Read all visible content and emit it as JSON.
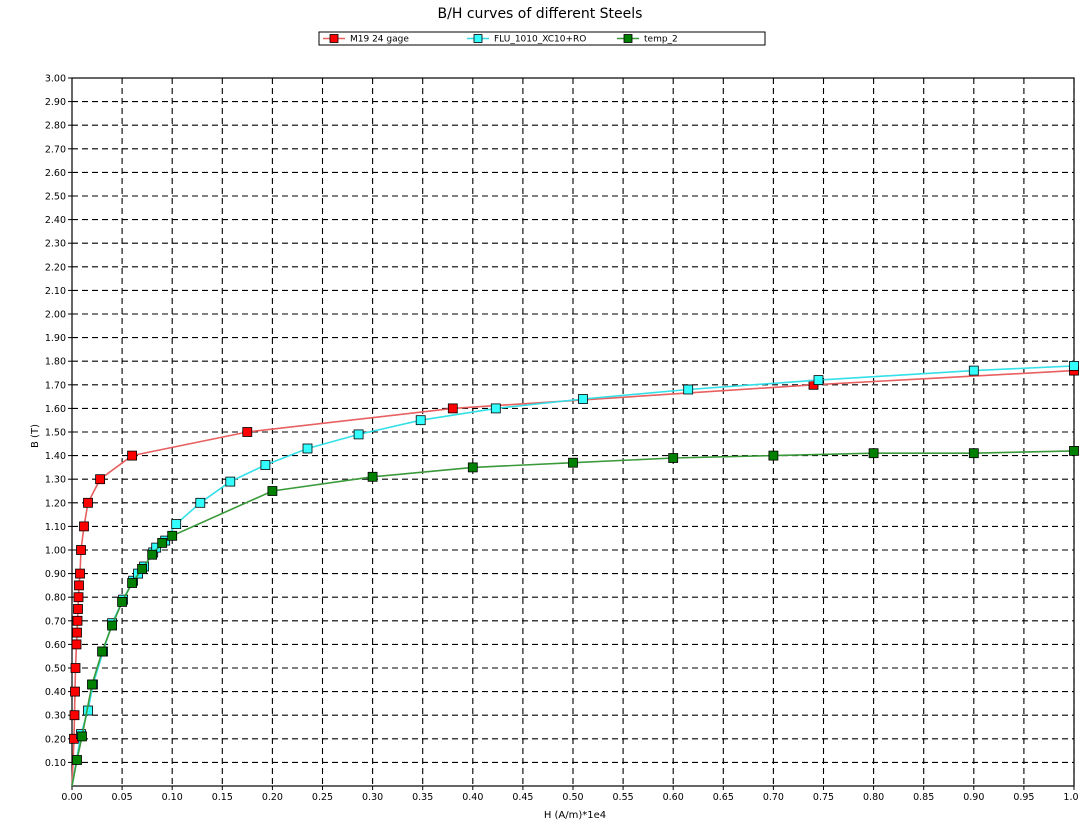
{
  "chart_data": {
    "type": "line",
    "title": "B/H curves of different Steels",
    "xlabel": "H (A/m)*1e4",
    "ylabel": "B (T)",
    "xlim": [
      0,
      1.0
    ],
    "ylim": [
      0,
      3.0
    ],
    "x_ticks": [
      "0.00",
      "0.05",
      "0.10",
      "0.15",
      "0.20",
      "0.25",
      "0.30",
      "0.35",
      "0.40",
      "0.45",
      "0.50",
      "0.55",
      "0.60",
      "0.65",
      "0.70",
      "0.75",
      "0.80",
      "0.85",
      "0.90",
      "0.95",
      "1.00"
    ],
    "y_ticks": [
      "0.10",
      "0.20",
      "0.30",
      "0.40",
      "0.50",
      "0.60",
      "0.70",
      "0.80",
      "0.90",
      "1.00",
      "1.10",
      "1.20",
      "1.30",
      "1.40",
      "1.50",
      "1.60",
      "1.70",
      "1.80",
      "1.90",
      "2.00",
      "2.10",
      "2.20",
      "2.30",
      "2.40",
      "2.50",
      "2.60",
      "2.70",
      "2.80",
      "2.90",
      "3.00"
    ],
    "grid": true,
    "legend_position": "top",
    "series": [
      {
        "name": "M19 24 gage",
        "color": "#ff0000",
        "line_color": "#e86060",
        "points": [
          [
            0,
            0
          ],
          [
            0.002,
            0.2
          ],
          [
            0.0025,
            0.3
          ],
          [
            0.003,
            0.4
          ],
          [
            0.0035,
            0.5
          ],
          [
            0.0045,
            0.6
          ],
          [
            0.005,
            0.65
          ],
          [
            0.0055,
            0.7
          ],
          [
            0.006,
            0.75
          ],
          [
            0.0065,
            0.8
          ],
          [
            0.007,
            0.85
          ],
          [
            0.008,
            0.9
          ],
          [
            0.009,
            1.0
          ],
          [
            0.012,
            1.1
          ],
          [
            0.016,
            1.2
          ],
          [
            0.028,
            1.3
          ],
          [
            0.06,
            1.4
          ],
          [
            0.175,
            1.5
          ],
          [
            0.38,
            1.6
          ],
          [
            0.74,
            1.7
          ],
          [
            1.0,
            1.76
          ]
        ]
      },
      {
        "name": "FLU_1010_XC10+RO",
        "color": "#33ffff",
        "line_color": "#33e0e8",
        "points": [
          [
            0,
            0
          ],
          [
            0.009,
            0.22
          ],
          [
            0.016,
            0.32
          ],
          [
            0.021,
            0.43
          ],
          [
            0.031,
            0.57
          ],
          [
            0.04,
            0.69
          ],
          [
            0.051,
            0.79
          ],
          [
            0.061,
            0.87
          ],
          [
            0.066,
            0.9
          ],
          [
            0.072,
            0.93
          ],
          [
            0.081,
            0.99
          ],
          [
            0.084,
            1.01
          ],
          [
            0.093,
            1.04
          ],
          [
            0.104,
            1.11
          ],
          [
            0.128,
            1.2
          ],
          [
            0.158,
            1.29
          ],
          [
            0.193,
            1.36
          ],
          [
            0.235,
            1.43
          ],
          [
            0.286,
            1.49
          ],
          [
            0.348,
            1.55
          ],
          [
            0.423,
            1.6
          ],
          [
            0.51,
            1.64
          ],
          [
            0.615,
            1.68
          ],
          [
            0.745,
            1.72
          ],
          [
            0.9,
            1.76
          ],
          [
            1.0,
            1.78
          ]
        ]
      },
      {
        "name": "temp_2",
        "color": "#008000",
        "line_color": "#3a9a3a",
        "points": [
          [
            0,
            0
          ],
          [
            0.005,
            0.11
          ],
          [
            0.01,
            0.21
          ],
          [
            0.02,
            0.43
          ],
          [
            0.03,
            0.57
          ],
          [
            0.04,
            0.68
          ],
          [
            0.05,
            0.78
          ],
          [
            0.06,
            0.86
          ],
          [
            0.07,
            0.92
          ],
          [
            0.08,
            0.98
          ],
          [
            0.09,
            1.03
          ],
          [
            0.1,
            1.06
          ],
          [
            0.2,
            1.25
          ],
          [
            0.3,
            1.31
          ],
          [
            0.4,
            1.35
          ],
          [
            0.5,
            1.37
          ],
          [
            0.6,
            1.39
          ],
          [
            0.7,
            1.4
          ],
          [
            0.8,
            1.41
          ],
          [
            0.9,
            1.41
          ],
          [
            1.0,
            1.42
          ]
        ]
      }
    ]
  }
}
